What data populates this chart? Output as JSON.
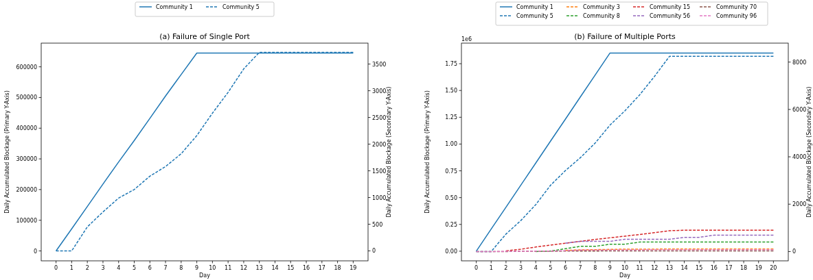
{
  "chart_data": [
    {
      "type": "line",
      "title": "(a) Failure of Single Port",
      "xlabel": "Day",
      "ylabel": "Daily Accumulated Blockage (Primary Y-Axis)",
      "y2label": "Daily Accumulated Blockage (Secondary Y-Axis)",
      "x": [
        0,
        1,
        2,
        3,
        4,
        5,
        6,
        7,
        8,
        9,
        10,
        11,
        12,
        13,
        14,
        15,
        16,
        17,
        18,
        19
      ],
      "xlim": [
        -0.95,
        19.95
      ],
      "xticks": [
        0,
        1,
        2,
        3,
        4,
        5,
        6,
        7,
        8,
        9,
        10,
        11,
        12,
        13,
        14,
        15,
        16,
        17,
        18,
        19
      ],
      "ylim": [
        -32250,
        677250
      ],
      "yticks": [
        0,
        100000,
        200000,
        300000,
        400000,
        500000,
        600000
      ],
      "y2lim": [
        -186,
        3892
      ],
      "y2ticks": [
        0,
        500,
        1000,
        1500,
        2000,
        2500,
        3000,
        3500
      ],
      "grid": false,
      "legend": "top",
      "marker": "none",
      "series": [
        {
          "name": "Community 1",
          "color": "#1f77b4",
          "line_style": "solid",
          "values": [
            0,
            72000,
            145000,
            218000,
            290000,
            360000,
            432000,
            505000,
            575000,
            645000,
            645000,
            645000,
            645000,
            645000,
            645000,
            645000,
            645000,
            645000,
            645000,
            645000
          ]
        },
        {
          "name": "Community 5",
          "color": "#1f77b4",
          "line_style": "dashed",
          "axis": "y2",
          "values": [
            0,
            0,
            450,
            730,
            990,
            1150,
            1400,
            1580,
            1820,
            2160,
            2580,
            2970,
            3410,
            3720,
            3720,
            3720,
            3720,
            3720,
            3720,
            3720
          ]
        }
      ]
    },
    {
      "type": "line",
      "title": "(b) Failure of Multiple Ports",
      "xlabel": "Day",
      "ylabel": "Daily Accumulated Blockage (Primary Y-Axis)",
      "y2label": "Daily Accumulated Blockage (Secondary Y-Axis)",
      "annotations": [
        "1e6"
      ],
      "x": [
        0,
        1,
        2,
        3,
        4,
        5,
        6,
        7,
        8,
        9,
        10,
        11,
        12,
        13,
        14,
        15,
        16,
        17,
        18,
        19,
        20
      ],
      "xlim": [
        -1,
        21
      ],
      "xticks": [
        0,
        1,
        2,
        3,
        4,
        5,
        6,
        7,
        8,
        9,
        10,
        11,
        12,
        13,
        14,
        15,
        16,
        17,
        18,
        19,
        20
      ],
      "ylim": [
        -0.09,
        1.942
      ],
      "yticks": [
        {
          "value": 0,
          "label": "0.00"
        },
        {
          "value": 0.25,
          "label": "0.25"
        },
        {
          "value": 0.5,
          "label": "0.50"
        },
        {
          "value": 0.75,
          "label": "0.75"
        },
        {
          "value": 1,
          "label": "1.00"
        },
        {
          "value": 1.25,
          "label": "1.25"
        },
        {
          "value": 1.5,
          "label": "1.50"
        },
        {
          "value": 1.75,
          "label": "1.75"
        }
      ],
      "y2lim": [
        -392,
        8800
      ],
      "y2ticks": [
        0,
        2000,
        4000,
        6000,
        8000
      ],
      "grid": false,
      "legend": "top",
      "marker": "none",
      "series": [
        {
          "name": "Community 1",
          "color": "#1f77b4",
          "line_style": "solid",
          "values": [
            0,
            0.206,
            0.411,
            0.617,
            0.822,
            1.028,
            1.233,
            1.439,
            1.644,
            1.85,
            1.85,
            1.85,
            1.85,
            1.85,
            1.85,
            1.85,
            1.85,
            1.85,
            1.85,
            1.85,
            1.85
          ]
        },
        {
          "name": "Community 5",
          "color": "#1f77b4",
          "line_style": "dashed",
          "axis": "y2",
          "values": [
            0,
            0,
            740,
            1310,
            1980,
            2800,
            3420,
            3960,
            4580,
            5340,
            5940,
            6620,
            7400,
            8240,
            8240,
            8240,
            8240,
            8240,
            8240,
            8240,
            8240
          ]
        },
        {
          "name": "Community 3",
          "color": "#ff7f0e",
          "line_style": "dashed",
          "axis": "y2",
          "values": [
            null,
            null,
            null,
            null,
            null,
            null,
            50,
            70,
            80,
            90,
            100,
            100,
            100,
            110,
            110,
            110,
            110,
            110,
            110,
            110,
            110
          ]
        },
        {
          "name": "Community 8",
          "color": "#2ca02c",
          "line_style": "dashed",
          "axis": "y2",
          "values": [
            null,
            null,
            null,
            null,
            0,
            20,
            120,
            220,
            220,
            310,
            310,
            400,
            400,
            400,
            400,
            400,
            400,
            400,
            400,
            400,
            400
          ]
        },
        {
          "name": "Community 15",
          "color": "#d62728",
          "line_style": "dashed",
          "axis": "y2",
          "values": [
            null,
            null,
            30,
            100,
            190,
            270,
            350,
            430,
            510,
            580,
            650,
            720,
            800,
            880,
            900,
            900,
            900,
            900,
            900,
            900,
            900
          ]
        },
        {
          "name": "Community 56",
          "color": "#9467bd",
          "line_style": "dashed",
          "axis": "y2",
          "values": [
            null,
            null,
            null,
            null,
            null,
            null,
            350,
            430,
            430,
            430,
            520,
            520,
            520,
            520,
            600,
            600,
            690,
            690,
            690,
            690,
            690
          ]
        },
        {
          "name": "Community 70",
          "color": "#8c564b",
          "line_style": "dashed",
          "axis": "y2",
          "values": [
            0,
            0,
            0,
            10,
            10,
            10,
            20,
            20,
            20,
            30,
            30,
            30,
            30,
            30,
            30,
            30,
            30,
            30,
            30,
            30,
            30
          ]
        },
        {
          "name": "Community 96",
          "color": "#e377c2",
          "line_style": "dashed",
          "axis": "y2",
          "values": [
            0,
            0,
            10,
            10,
            20,
            20,
            40,
            60,
            60,
            70,
            70,
            70,
            80,
            80,
            80,
            80,
            80,
            80,
            80,
            80,
            80
          ]
        }
      ]
    }
  ]
}
